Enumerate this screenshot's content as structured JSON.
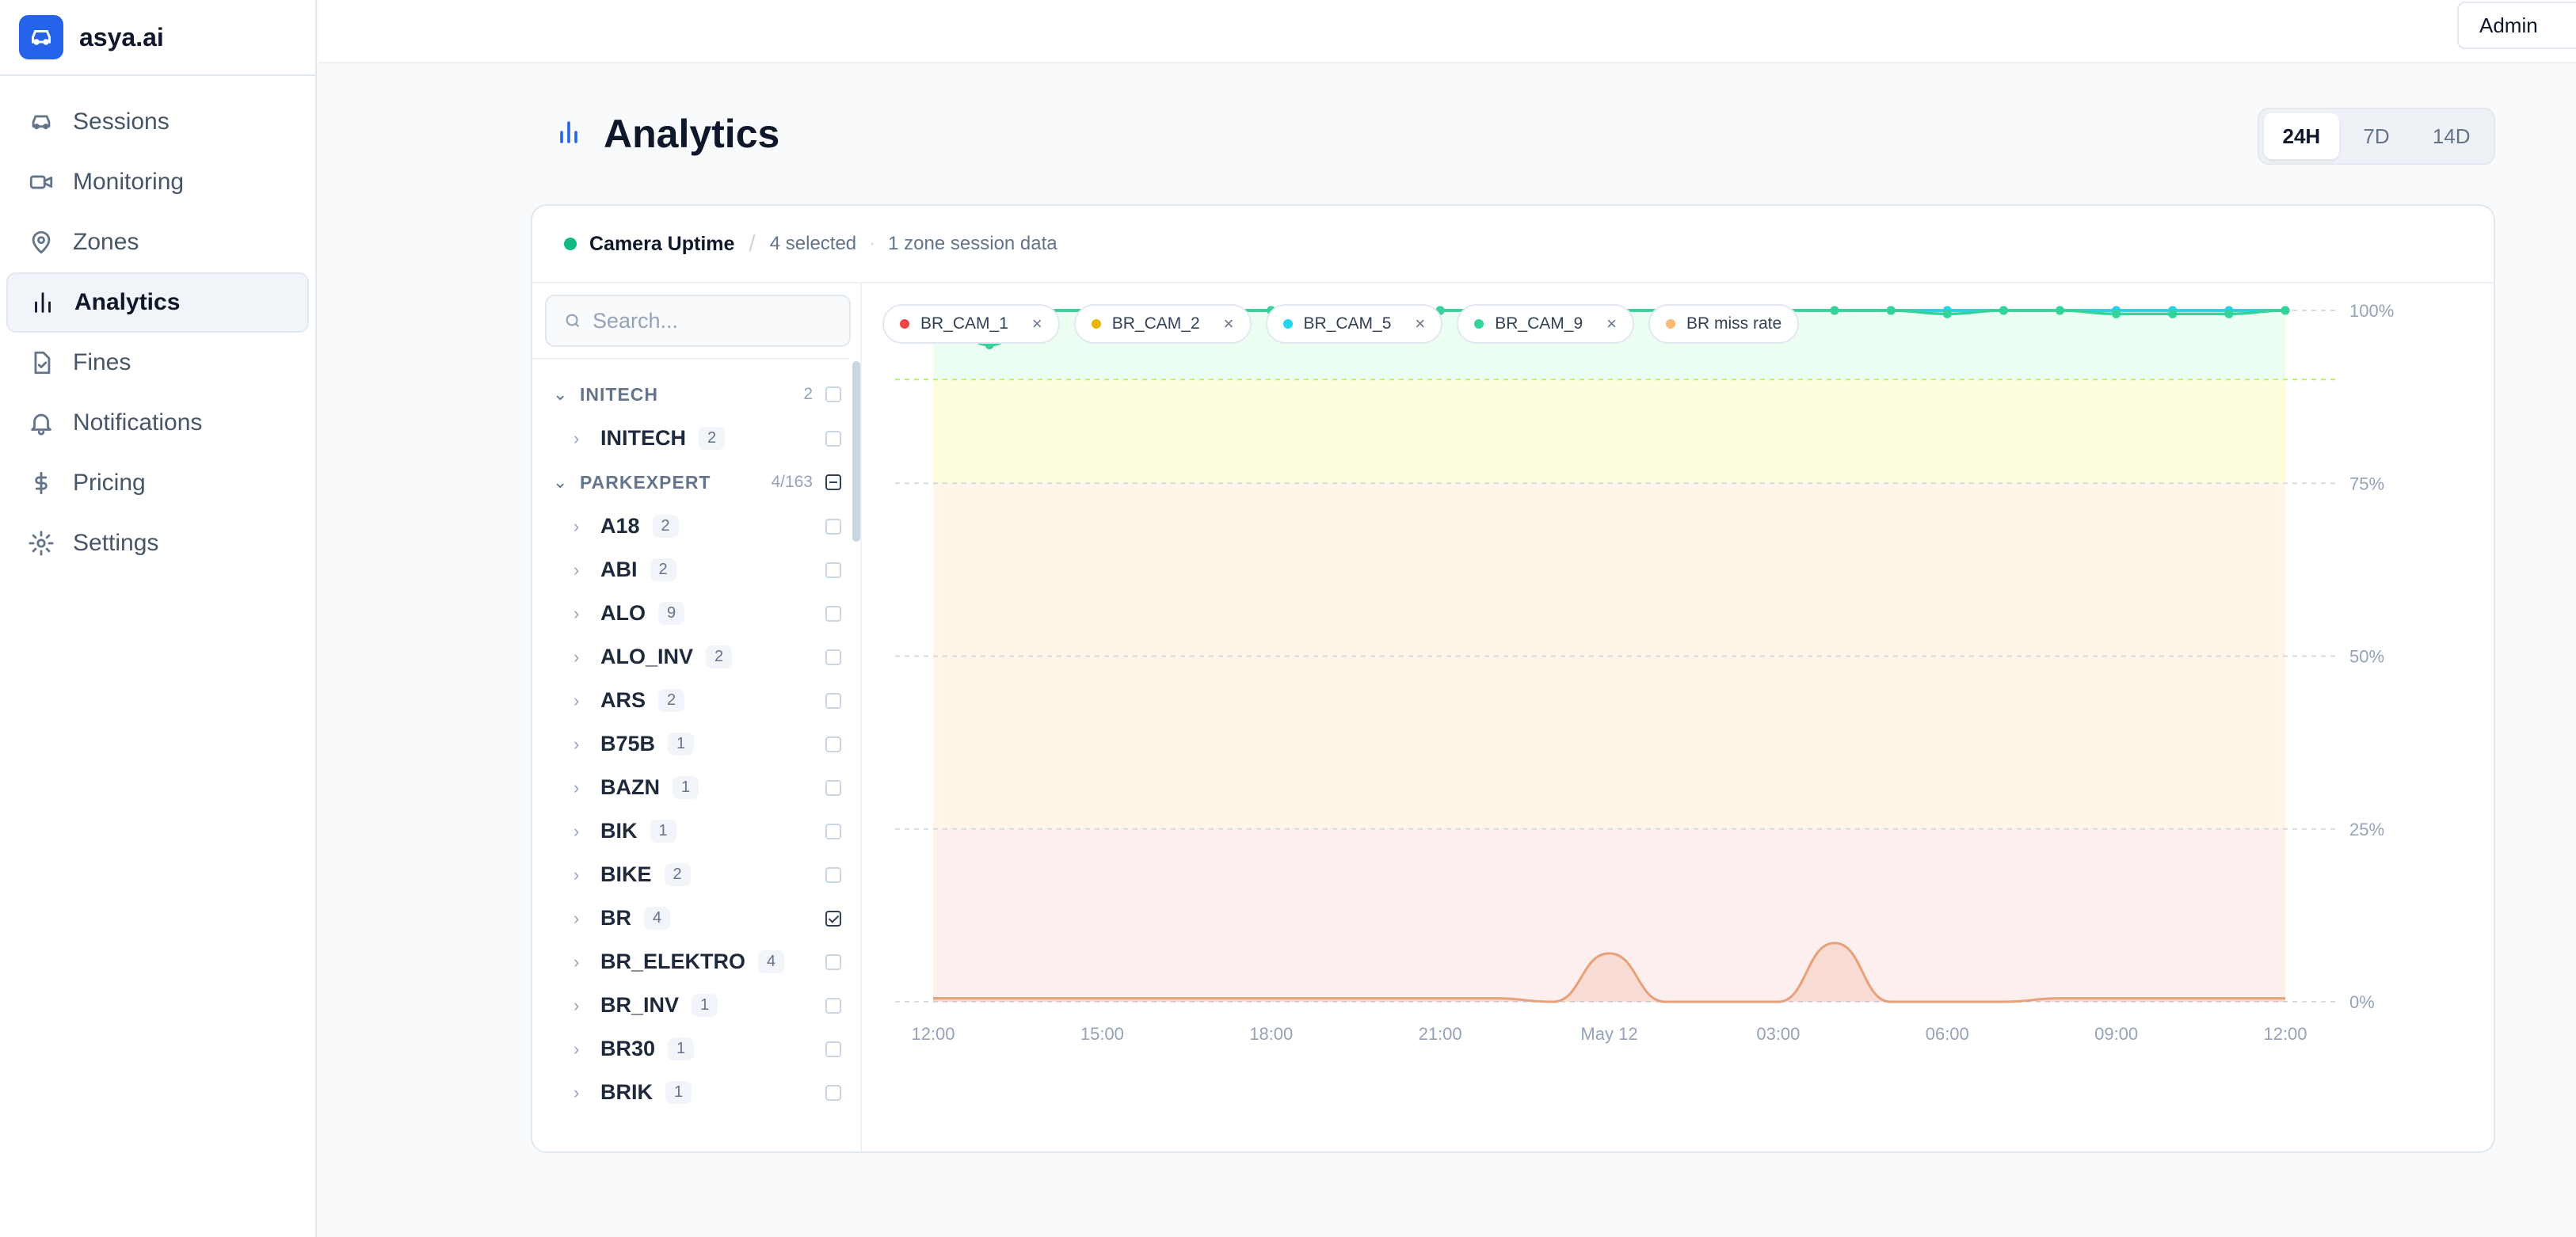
{
  "app": {
    "name": "asya.ai"
  },
  "sidebar": {
    "items": [
      {
        "label": "Sessions",
        "icon": "car-icon"
      },
      {
        "label": "Monitoring",
        "icon": "video-icon"
      },
      {
        "label": "Zones",
        "icon": "map-pin-icon"
      },
      {
        "label": "Analytics",
        "icon": "bar-chart-icon",
        "active": true
      },
      {
        "label": "Fines",
        "icon": "document-check-icon"
      },
      {
        "label": "Notifications",
        "icon": "bell-icon"
      },
      {
        "label": "Pricing",
        "icon": "dollar-icon"
      },
      {
        "label": "Settings",
        "icon": "gear-icon"
      }
    ]
  },
  "topbar": {
    "admin_label": "Admin"
  },
  "page": {
    "title": "Analytics"
  },
  "range": {
    "options": [
      "24H",
      "7D",
      "14D"
    ],
    "selected": "24H"
  },
  "card": {
    "title": "Camera Uptime",
    "selected": "4 selected",
    "zone_info": "1 zone session data",
    "status_color": "#10b981"
  },
  "search": {
    "placeholder": "Search...",
    "value": ""
  },
  "tree": {
    "groups": [
      {
        "label": "INITECH",
        "count": "2",
        "state": "unchecked",
        "items": [
          {
            "label": "INITECH",
            "count": "2",
            "checked": false
          }
        ]
      },
      {
        "label": "PARKEXPERT",
        "count": "4/163",
        "state": "partial",
        "items": [
          {
            "label": "A18",
            "count": "2",
            "checked": false
          },
          {
            "label": "ABI",
            "count": "2",
            "checked": false
          },
          {
            "label": "ALO",
            "count": "9",
            "checked": false
          },
          {
            "label": "ALO_INV",
            "count": "2",
            "checked": false
          },
          {
            "label": "ARS",
            "count": "2",
            "checked": false
          },
          {
            "label": "B75B",
            "count": "1",
            "checked": false
          },
          {
            "label": "BAZN",
            "count": "1",
            "checked": false
          },
          {
            "label": "BIK",
            "count": "1",
            "checked": false
          },
          {
            "label": "BIKE",
            "count": "2",
            "checked": false
          },
          {
            "label": "BR",
            "count": "4",
            "checked": true
          },
          {
            "label": "BR_ELEKTRO",
            "count": "4",
            "checked": false
          },
          {
            "label": "BR_INV",
            "count": "1",
            "checked": false
          },
          {
            "label": "BR30",
            "count": "1",
            "checked": false
          },
          {
            "label": "BRIK",
            "count": "1",
            "checked": false
          }
        ]
      }
    ]
  },
  "chips": [
    {
      "label": "BR_CAM_1",
      "color": "#ef4444",
      "removable": true
    },
    {
      "label": "BR_CAM_2",
      "color": "#eab308",
      "removable": true
    },
    {
      "label": "BR_CAM_5",
      "color": "#22d3ee",
      "removable": true
    },
    {
      "label": "BR_CAM_9",
      "color": "#34d399",
      "removable": true
    },
    {
      "label": "BR miss rate",
      "color": "#fdba74",
      "removable": false
    }
  ],
  "chart_data": {
    "type": "line",
    "x": [
      "12:00",
      "13:00",
      "14:00",
      "15:00",
      "16:00",
      "17:00",
      "18:00",
      "19:00",
      "20:00",
      "21:00",
      "22:00",
      "23:00",
      "May 12",
      "01:00",
      "02:00",
      "03:00",
      "04:00",
      "05:00",
      "06:00",
      "07:00",
      "08:00",
      "09:00",
      "10:00",
      "11:00",
      "12:00"
    ],
    "x_tick_labels": [
      "12:00",
      "15:00",
      "18:00",
      "21:00",
      "May 12",
      "03:00",
      "06:00",
      "09:00",
      "12:00"
    ],
    "y_tick_labels": [
      "100%",
      "75%",
      "50%",
      "25%",
      "0%"
    ],
    "ylim": [
      0,
      100
    ],
    "series": [
      {
        "name": "BR_CAM_1",
        "color": "#ef4444",
        "values": [
          100,
          100,
          100,
          100,
          100,
          100,
          100,
          100,
          100,
          100,
          100,
          100,
          100,
          100,
          100,
          100,
          100,
          100,
          100,
          100,
          100,
          100,
          100,
          100,
          100
        ]
      },
      {
        "name": "BR_CAM_2",
        "color": "#eab308",
        "values": [
          100,
          100,
          100,
          100,
          100,
          100,
          100,
          100,
          100,
          100,
          100,
          100,
          100,
          100,
          100,
          100,
          100,
          100,
          100,
          100,
          100,
          100,
          100,
          100,
          100
        ]
      },
      {
        "name": "BR_CAM_5",
        "color": "#22d3ee",
        "values": [
          100,
          100,
          100,
          100,
          100,
          100,
          100,
          100,
          100,
          100,
          100,
          100,
          100,
          100,
          100,
          100,
          100,
          100,
          100,
          100,
          100,
          100,
          100,
          100,
          100
        ]
      },
      {
        "name": "BR_CAM_9",
        "color": "#34d399",
        "values": [
          100,
          95,
          100,
          100,
          100,
          100,
          100,
          100,
          100,
          100,
          100,
          100,
          100,
          100,
          100,
          100,
          100,
          100,
          99.5,
          100,
          100,
          99.5,
          99.5,
          99.5,
          100
        ]
      },
      {
        "name": "BR miss rate",
        "color": "#e8a07a",
        "values": [
          0.5,
          0.5,
          0.5,
          0.5,
          0.5,
          0.5,
          0.5,
          0.5,
          0.5,
          0.5,
          0.5,
          0,
          7,
          0,
          0,
          0,
          8.5,
          0,
          0,
          0,
          0.5,
          0.5,
          0.5,
          0.5,
          0.5
        ]
      }
    ],
    "bands": [
      {
        "from": 90,
        "to": 100,
        "color": "#dcfce7"
      },
      {
        "from": 75,
        "to": 90,
        "color": "#fef9c3"
      },
      {
        "from": 25,
        "to": 75,
        "color": "#ffedd5"
      },
      {
        "from": 0,
        "to": 25,
        "color": "#fee2e2"
      }
    ],
    "threshold": 90,
    "grid": true
  }
}
